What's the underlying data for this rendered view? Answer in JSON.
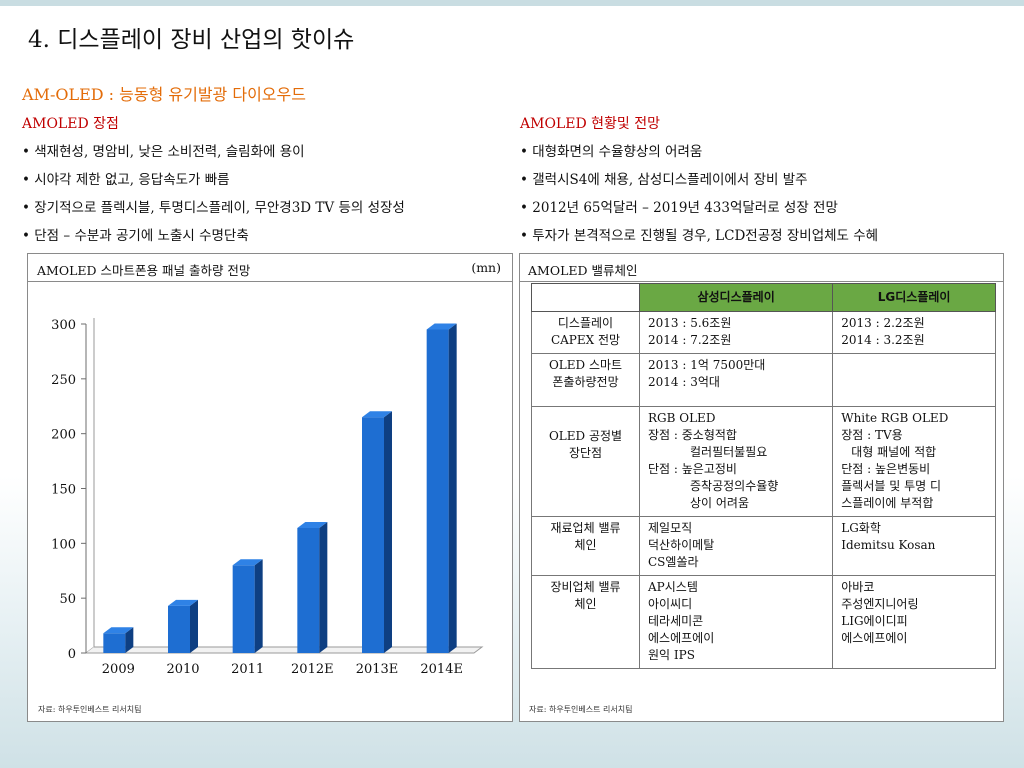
{
  "slide": {
    "title": "4. 디스플레이 장비 산업의 핫이슈",
    "subtitle": "AM-OLED : 능동형 유기발광 다이오우드"
  },
  "left_section": {
    "heading": "AMOLED 장점",
    "bullets": [
      "색재현성, 명암비, 낮은 소비전력, 슬림화에 용이",
      "시야각 제한 없고, 응답속도가 빠름",
      "장기적으로 플렉시블, 투명디스플레이, 무안경3D TV 등의 성장성",
      "단점 – 수분과 공기에 노출시 수명단축"
    ]
  },
  "right_section": {
    "heading": "AMOLED 현황및 전망",
    "bullets": [
      "대형화면의 수율향상의 어려움",
      "갤럭시S4에 채용, 삼성디스플레이에서 장비 발주",
      "2012년 65억달러 – 2019년 433억달러로 성장 전망",
      "투자가 본격적으로 진행될 경우, LCD전공정 장비업체도 수혜"
    ]
  },
  "chart_panel": {
    "title": "AMOLED 스마트폰용 패널 출하량 전망",
    "unit": "(mn)",
    "source": "자료: 하우투인베스트 리서치팀"
  },
  "chart_data": {
    "type": "bar",
    "title": "AMOLED 스마트폰용 패널 출하량 전망",
    "ylabel": "(mn)",
    "categories": [
      "2009",
      "2010",
      "2011",
      "2012E",
      "2013E",
      "2014E"
    ],
    "values": [
      18,
      43,
      80,
      114,
      215,
      295
    ],
    "ylim": [
      0,
      300
    ],
    "yticks": [
      0,
      50,
      100,
      150,
      200,
      250,
      300
    ],
    "grid": false,
    "legend": "none",
    "colors": {
      "bar_front": "#1e6ed2",
      "bar_side": "#0e3f82",
      "bar_top": "#2f82e6"
    }
  },
  "table_panel": {
    "title": "AMOLED 밸류체인",
    "source": "자료: 하우투인베스트 리서치팀",
    "columns": [
      "",
      "삼성디스플레이",
      "LG디스플레이"
    ],
    "rows": [
      {
        "label": [
          "디스플레이",
          "CAPEX 전망"
        ],
        "samsung": [
          "2013 : 5.6조원",
          "2014 : 7.2조원"
        ],
        "lg": [
          "2013 : 2.2조원",
          "2014 : 3.2조원"
        ]
      },
      {
        "label": [
          "OLED 스마트",
          "폰출하량전망"
        ],
        "samsung": [
          "2013 : 1억 7500만대",
          "2014 : 3억대"
        ],
        "lg": []
      },
      {
        "label": [
          "OLED 공정별",
          "장단점"
        ],
        "samsung": [
          "RGB OLED",
          "장점 : 중소형적합",
          "컬러필터불필요",
          "단점 : 높은고정비",
          "증착공정의수율향",
          "상이 어려움"
        ],
        "lg": [
          "White RGB OLED",
          "장점 : TV용",
          "대형 패널에 적합",
          "단점 : 높은변동비",
          "플렉서블 및 투명 디",
          "스플레이에 부적합"
        ]
      },
      {
        "label": [
          "재료업체 밸류",
          "체인"
        ],
        "samsung": [
          "제일모직",
          "덕산하이메탈",
          "CS엘쏠라"
        ],
        "lg": [
          "LG화학",
          "Idemitsu Kosan"
        ]
      },
      {
        "label": [
          "장비업체 밸류",
          "체인"
        ],
        "samsung": [
          "AP시스템",
          "아이씨디",
          "테라세미콘",
          "에스에프에이",
          "원익 IPS"
        ],
        "lg": [
          "아바코",
          "주성엔지니어링",
          "LIG에이디피",
          "에스에프에이"
        ]
      }
    ]
  },
  "colors": {
    "accent_orange": "#e36c09",
    "accent_red": "#c00000",
    "header_green": "#6aa844"
  }
}
